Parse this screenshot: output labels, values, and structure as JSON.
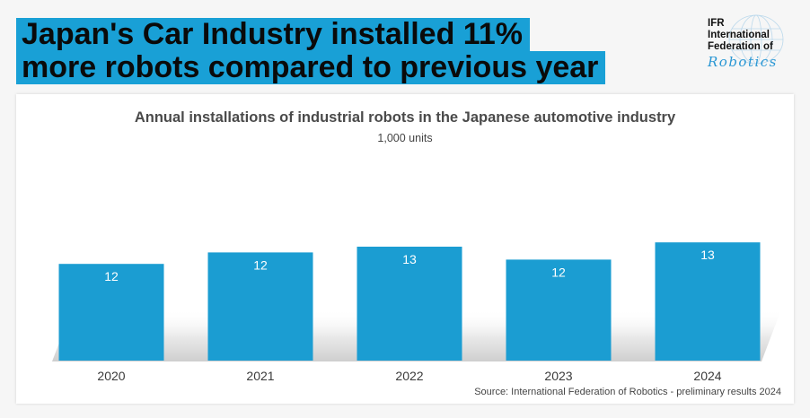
{
  "headline": {
    "line1": "Japan's Car Industry installed 11%",
    "line2": "more robots compared to previous year"
  },
  "logo": {
    "line1": "IFR",
    "line2": "International",
    "line3": "Federation of",
    "script": "Robotics"
  },
  "colors": {
    "headline_bg": "#19a0d6",
    "bar": "#1b9dd2",
    "bar_label": "#ffffff"
  },
  "chart_data": {
    "type": "bar",
    "title": "Annual installations of industrial robots in the Japanese automotive industry",
    "subtitle": "1,000 units",
    "categories": [
      "2020",
      "2021",
      "2022",
      "2023",
      "2024"
    ],
    "values": [
      12,
      12,
      13,
      12,
      13
    ],
    "source": "Source: International Federation of Robotics - preliminary results 2024",
    "grid": false,
    "legend": "none"
  }
}
